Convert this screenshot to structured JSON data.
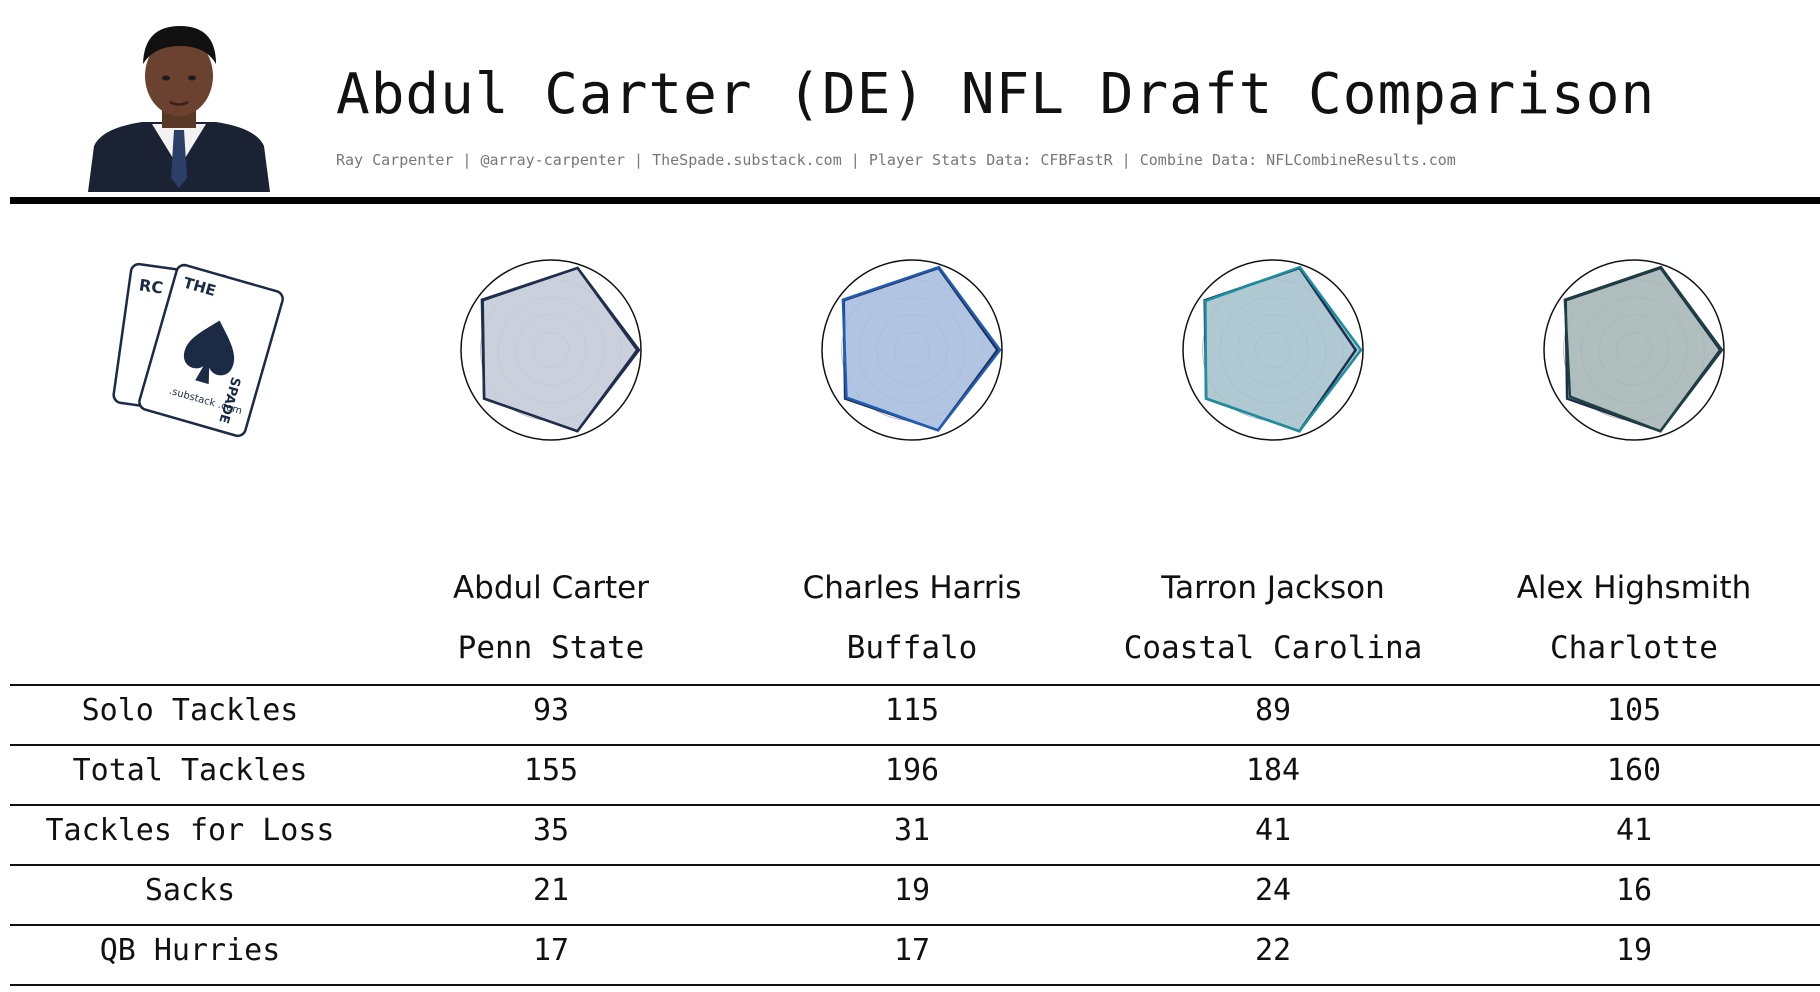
{
  "header": {
    "title": "Abdul Carter (DE) NFL Draft Comparison",
    "subtitle": "Ray Carpenter | @array-carpenter | TheSpade.substack.com | Player Stats Data: CFBFastR | Combine Data: NFLCombineResults.com"
  },
  "logo": {
    "back_card": "RC",
    "front_card_top": "THE",
    "front_card_side": "SPADE",
    "front_card_bottom": ".substack .com"
  },
  "colors": {
    "divider": "#000000",
    "players": [
      "#1f2e4d",
      "#1f5cb8",
      "#1a8fa0",
      "#1f4040"
    ],
    "fills": [
      "#c4ccd8",
      "#a8bedf",
      "#a6c2cc",
      "#a9b7b7"
    ]
  },
  "chart_data": {
    "type": "table",
    "columns": [
      {
        "name": "Abdul Carter",
        "school": "Penn State"
      },
      {
        "name": "Charles Harris",
        "school": "Buffalo"
      },
      {
        "name": "Tarron Jackson",
        "school": "Coastal Carolina"
      },
      {
        "name": "Alex Highsmith",
        "school": "Charlotte"
      }
    ],
    "rows": [
      {
        "label": "Solo Tackles",
        "values": [
          93,
          115,
          89,
          105
        ]
      },
      {
        "label": "Total Tackles",
        "values": [
          155,
          196,
          184,
          160
        ]
      },
      {
        "label": "Tackles for Loss",
        "values": [
          35,
          31,
          41,
          41
        ]
      },
      {
        "label": "Sacks",
        "values": [
          21,
          19,
          24,
          16
        ]
      },
      {
        "label": "QB Hurries",
        "values": [
          17,
          17,
          22,
          19
        ]
      }
    ],
    "radar": {
      "axes": 5,
      "max": 1,
      "series": [
        {
          "values": [
            1.0,
            0.98,
            0.97,
            0.94,
            0.97
          ],
          "reference": [
            0.98,
            0.98,
            0.96,
            0.94,
            0.97
          ]
        },
        {
          "values": [
            1.0,
            0.99,
            0.97,
            0.92,
            0.96
          ],
          "reference": [
            0.97,
            0.98,
            0.96,
            0.94,
            0.96
          ]
        },
        {
          "values": [
            1.0,
            0.99,
            0.95,
            0.94,
            0.97
          ],
          "reference": [
            0.94,
            0.98,
            0.96,
            0.94,
            0.97
          ]
        },
        {
          "values": [
            1.0,
            0.99,
            0.97,
            0.9,
            0.97
          ],
          "reference": [
            0.98,
            0.98,
            0.96,
            0.94,
            0.97
          ]
        }
      ]
    }
  }
}
